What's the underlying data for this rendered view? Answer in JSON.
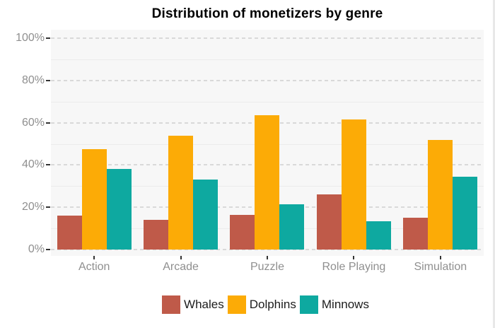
{
  "chart_data": {
    "type": "bar",
    "title": "Distribution of monetizers by genre",
    "categories": [
      "Action",
      "Arcade",
      "Puzzle",
      "Role Playing",
      "Simulation"
    ],
    "series": [
      {
        "name": "Whales",
        "color": "#BF5A49",
        "values": [
          16,
          14,
          16.5,
          26,
          15
        ]
      },
      {
        "name": "Dolphins",
        "color": "#FCAB06",
        "values": [
          47.5,
          54,
          63.5,
          61.5,
          52
        ]
      },
      {
        "name": "Minnows",
        "color": "#0EA9A0",
        "values": [
          38,
          33,
          21.5,
          13.5,
          34.5
        ]
      }
    ],
    "y_axis": {
      "tick_values": [
        0,
        20,
        40,
        60,
        80,
        100
      ],
      "tick_labels": [
        "0%",
        "20%",
        "40%",
        "60%",
        "80%",
        "100%"
      ],
      "minor_tick_values": [
        10,
        30,
        50,
        70,
        90
      ]
    },
    "ylim": [
      0,
      100
    ],
    "xlabel": "",
    "ylabel": "",
    "grid": "dashed-major-with-faint-minor",
    "legend_position": "bottom-center",
    "panel_background": "#f7f7f7",
    "gridline_color": "#d9d9d9",
    "axis_text_color": "#8f8f8f"
  }
}
